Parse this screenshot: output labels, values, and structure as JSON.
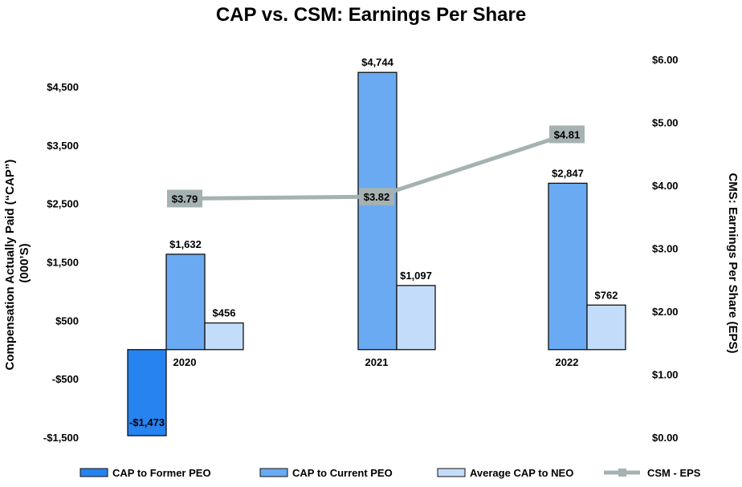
{
  "chart_data": {
    "type": "bar",
    "title": "CAP vs. CSM: Earnings Per Share",
    "categories": [
      "2020",
      "2021",
      "2022"
    ],
    "ylabel": "Compensation Actually Paid (“CAP”) (000’S)",
    "y2label": "CMS: Earnings Per Share (EPS)",
    "ylim": [
      -1500,
      4500
    ],
    "y_ticks": [
      -1500,
      -500,
      500,
      1500,
      2500,
      3500,
      4500
    ],
    "y_tick_labels": [
      "-$1,500",
      "-$500",
      "$500",
      "$1,500",
      "$2,500",
      "$3,500",
      "$4,500"
    ],
    "y2lim": [
      0,
      6
    ],
    "y2_ticks": [
      0,
      1,
      2,
      3,
      4,
      5,
      6
    ],
    "y2_tick_labels": [
      "$0.00",
      "$1.00",
      "$2.00",
      "$3.00",
      "$4.00",
      "$5.00",
      "$6.00"
    ],
    "series": [
      {
        "name": "CAP to Former PEO",
        "color": "#2683f0",
        "values": [
          -1473,
          null,
          null
        ],
        "labels": [
          "-$1,473",
          "",
          ""
        ]
      },
      {
        "name": "CAP to Current PEO",
        "color": "#6aaaf2",
        "values": [
          1632,
          4744,
          2847
        ],
        "labels": [
          "$1,632",
          "$4,744",
          "$2,847"
        ]
      },
      {
        "name": "Average CAP to NEO",
        "color": "#c3dcf9",
        "values": [
          456,
          1097,
          762
        ],
        "labels": [
          "$456",
          "$1,097",
          "$762"
        ]
      },
      {
        "name": "CSM - EPS",
        "type": "line",
        "axis": "secondary",
        "color": "#a6b1b1",
        "values": [
          3.79,
          3.82,
          4.81
        ],
        "labels": [
          "$3.79",
          "$3.82",
          "$4.81"
        ]
      }
    ],
    "legend": {
      "position": "bottom",
      "items": [
        "CAP to Former PEO",
        "CAP to Current PEO",
        "Average CAP to NEO",
        "CSM - EPS"
      ]
    }
  }
}
